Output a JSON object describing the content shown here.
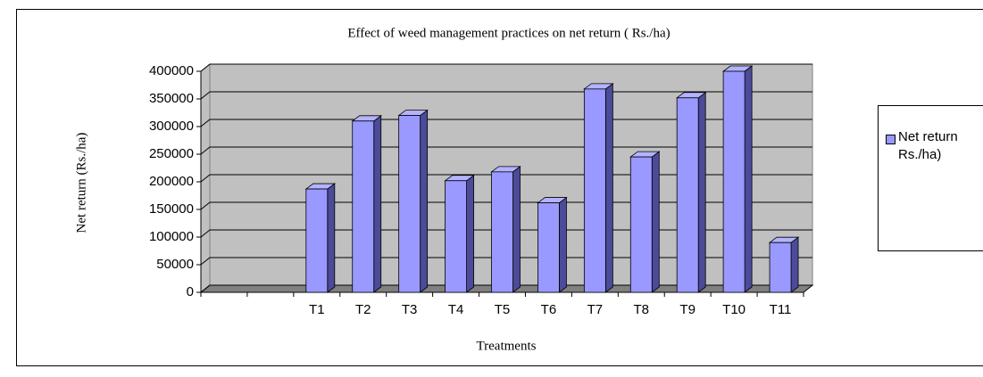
{
  "chart_data": {
    "type": "bar",
    "title": "Effect of weed management practices on net return ( Rs./ha)",
    "x_label": "Treatments",
    "y_label": "Net return (Rs./ha)",
    "categories": [
      null,
      null,
      "T1",
      "T2",
      "T3",
      "T4",
      "T5",
      "T6",
      "T7",
      "T8",
      "T9",
      "T10",
      "T11"
    ],
    "series": [
      {
        "name": "Net return Rs./ha)",
        "color": "#9999ff",
        "values": [
          null,
          null,
          187000,
          310000,
          320000,
          202000,
          218000,
          162000,
          368000,
          245000,
          352000,
          400000,
          90000
        ]
      }
    ],
    "ylim": [
      0,
      400000
    ],
    "yticks": [
      0,
      50000,
      100000,
      150000,
      200000,
      250000,
      300000,
      350000,
      400000
    ],
    "grid": true,
    "legend": "right"
  }
}
